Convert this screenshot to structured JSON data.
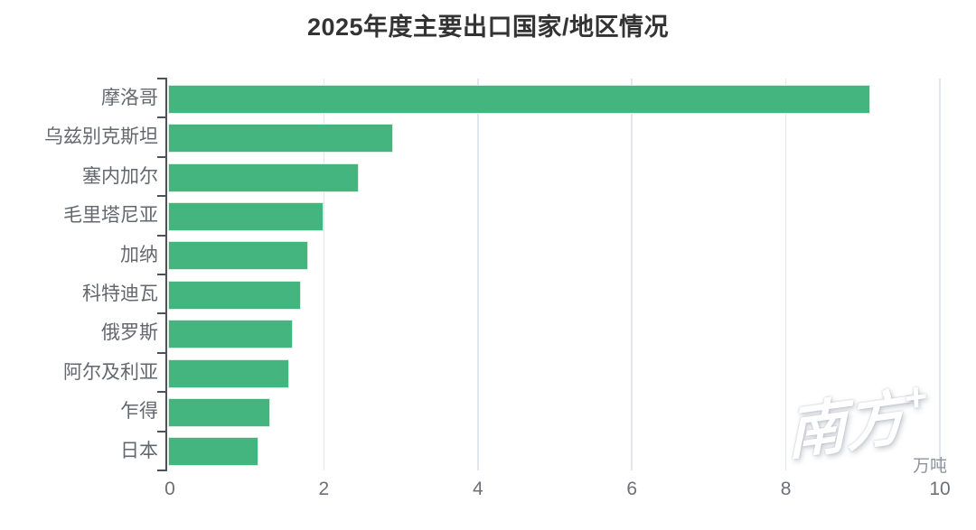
{
  "watermark": {
    "text": "南方",
    "plus": "+"
  },
  "chart_data": {
    "type": "bar",
    "orientation": "horizontal",
    "title": "2025年度主要出口国家/地区情况",
    "categories": [
      "摩洛哥",
      "乌兹别克斯坦",
      "塞内加尔",
      "毛里塔尼亚",
      "加纳",
      "科特迪瓦",
      "俄罗斯",
      "阿尔及利亚",
      "乍得",
      "日本"
    ],
    "values": [
      9.1,
      2.9,
      2.45,
      2.0,
      1.8,
      1.7,
      1.6,
      1.55,
      1.3,
      1.15
    ],
    "xlim": [
      0,
      10
    ],
    "x_ticks": [
      0,
      2,
      4,
      6,
      8,
      10
    ],
    "unit": "万吨",
    "grid": true,
    "legend": false,
    "colors": {
      "bar": "#44b57e",
      "bar_border": "#d7f0e2",
      "gridline": "#e1e7f2",
      "axis": "#50525a",
      "tick_label": "#6e7079",
      "category_label": "#63686f",
      "title": "#333333",
      "unit_label": "#8f949c"
    }
  }
}
